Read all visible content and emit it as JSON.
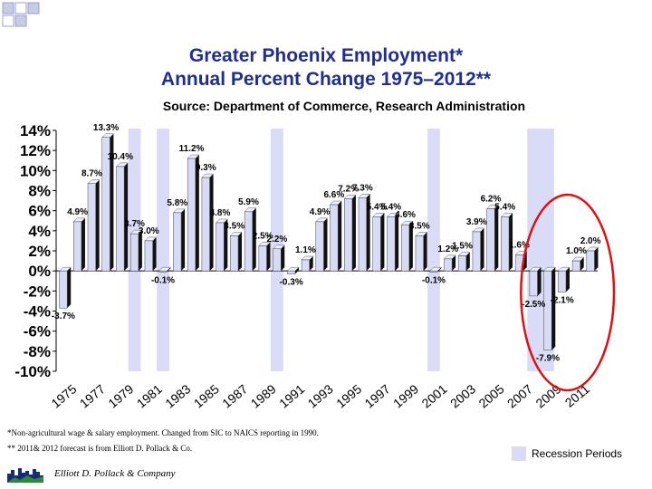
{
  "title_line1": "Greater Phoenix Employment*",
  "title_line2": "Annual Percent Change 1975–2012**",
  "subtitle": "Source: Department of Commerce, Research Administration",
  "footnote1": "*Non-agricultural wage & salary employment.  Changed from SIC to NAICS reporting in 1990.",
  "footnote2": "** 2011& 2012 forecast is from Elliott D. Pollack & Co.",
  "legend_label": "Recession Periods",
  "company": "Elliott D. Pollack & Company",
  "colors": {
    "bar": "#d8dbf6",
    "bar_side": "#000000",
    "recession": "#d9dbf7",
    "ellipse": "#e01010",
    "title": "#1f2f8f"
  },
  "chart_data": {
    "type": "bar",
    "title": "Greater Phoenix Employment* Annual Percent Change 1975–2012**",
    "categories": [
      "1975",
      "1976",
      "1977",
      "1978",
      "1979",
      "1980",
      "1981",
      "1982",
      "1983",
      "1984",
      "1985",
      "1986",
      "1987",
      "1988",
      "1989",
      "1990",
      "1991",
      "1992",
      "1993",
      "1994",
      "1995",
      "1996",
      "1997",
      "1998",
      "1999",
      "2000",
      "2001",
      "2002",
      "2003",
      "2004",
      "2005",
      "2006",
      "2007",
      "2008",
      "2009",
      "2010",
      "2011",
      "2012"
    ],
    "values": [
      -3.7,
      4.9,
      8.7,
      13.3,
      10.4,
      3.7,
      3.0,
      -0.1,
      5.8,
      11.2,
      9.3,
      4.8,
      3.5,
      5.9,
      2.5,
      2.2,
      -0.3,
      1.1,
      4.9,
      6.6,
      7.2,
      7.3,
      5.4,
      5.4,
      4.6,
      3.5,
      -0.1,
      1.2,
      1.5,
      3.9,
      6.2,
      5.4,
      1.6,
      -2.5,
      -7.9,
      -2.1,
      1.0,
      2.0
    ],
    "labels": [
      "-3.7%",
      "4.9%",
      "8.7%",
      "13.3%",
      "10.4%",
      "3.7%",
      "3.0%",
      "-0.1%",
      "5.8%",
      "11.2%",
      "9.3%",
      "4.8%",
      "3.5%",
      "5.9%",
      "2.5%",
      "2.2%",
      "-0.3%",
      "1.1%",
      "4.9%",
      "6.6%",
      "7.2%",
      "7.3%",
      "5.4%",
      "5.4%",
      "4.6%",
      "3.5%",
      "-0.1%",
      "1.2%",
      "1.5%",
      "3.9%",
      "6.2%",
      "5.4%",
      "1.6%",
      "-2.5%",
      "-7.9%",
      "-2.1%",
      "1.0%",
      "2.0%"
    ],
    "x_tick_labels": [
      "1975",
      "1977",
      "1979",
      "1981",
      "1983",
      "1985",
      "1987",
      "1989",
      "1991",
      "1993",
      "1995",
      "1997",
      "1999",
      "2001",
      "2003",
      "2005",
      "2007",
      "2009",
      "2011"
    ],
    "y_ticks": [
      14,
      12,
      10,
      8,
      6,
      4,
      2,
      0,
      -2,
      -4,
      -6,
      -8,
      -10
    ],
    "y_tick_labels": [
      "14%",
      "12%",
      "10%",
      "8%",
      "6%",
      "4%",
      "2%",
      "0%",
      "-2%",
      "-4%",
      "-6%",
      "-8%",
      "-10%"
    ],
    "ylim": [
      -10,
      14
    ],
    "xlabel": "",
    "ylabel": "",
    "recession_periods": [
      [
        "1980",
        "1980"
      ],
      [
        "1982",
        "1982"
      ],
      [
        "1990",
        "1990"
      ],
      [
        "2001",
        "2001"
      ],
      [
        "2008",
        "2009"
      ]
    ],
    "highlight": [
      "2008",
      "2012"
    ]
  }
}
